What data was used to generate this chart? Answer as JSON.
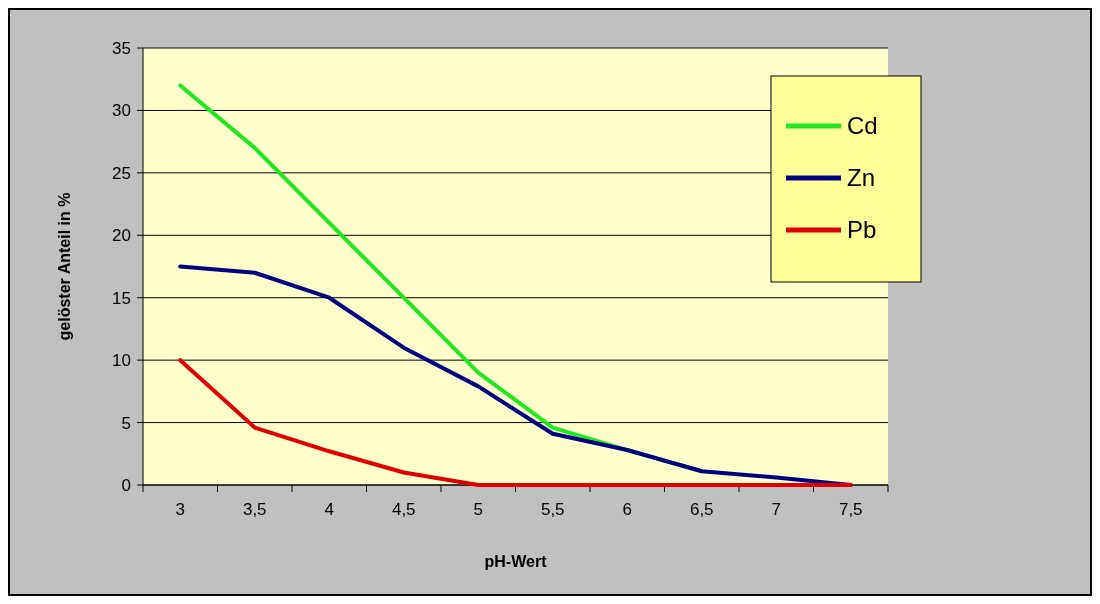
{
  "chart_data": {
    "type": "line",
    "xlabel": "pH-Wert",
    "ylabel": "gelöster Anteil in %",
    "categories": [
      "3",
      "3,5",
      "4",
      "4,5",
      "5",
      "5,5",
      "6",
      "6,5",
      "7",
      "7,5"
    ],
    "series": [
      {
        "name": "Cd",
        "color": "#22e622",
        "values": [
          32,
          27,
          21,
          15,
          9,
          4.6,
          2.8,
          1.1,
          null,
          null
        ]
      },
      {
        "name": "Zn",
        "color": "#000080",
        "values": [
          17.5,
          17,
          15,
          11,
          7.9,
          4.1,
          2.8,
          1.1,
          0.6,
          0
        ]
      },
      {
        "name": "Pb",
        "color": "#e00000",
        "values": [
          10,
          4.6,
          2.7,
          1,
          0,
          0,
          0,
          0,
          0,
          0
        ]
      }
    ],
    "ylim": [
      0,
      35
    ],
    "yticks": [
      0,
      5,
      10,
      15,
      20,
      25,
      30,
      35
    ],
    "grid": "y",
    "legend": "top right",
    "marker": "none",
    "line_style": "solid"
  }
}
